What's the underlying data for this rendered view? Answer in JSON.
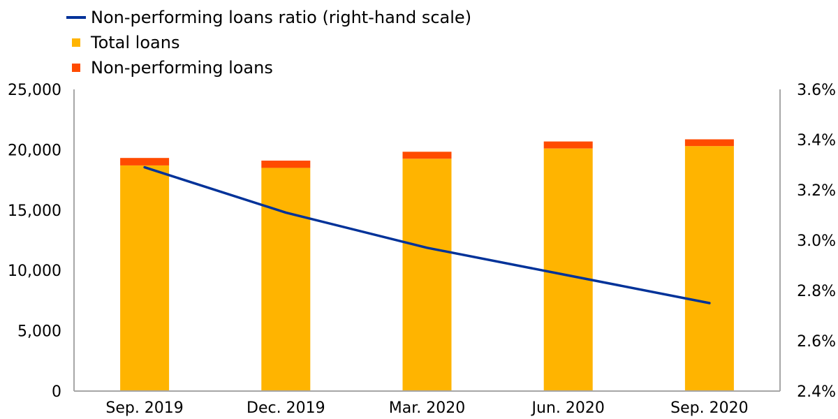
{
  "chart_data": {
    "type": "bar",
    "stacked": true,
    "categories": [
      "Sep. 2019",
      "Dec. 2019",
      "Mar. 2020",
      "Jun. 2020",
      "Sep. 2020"
    ],
    "series": [
      {
        "name": "Total loans",
        "kind": "bar",
        "axis": "left",
        "color": "#FFB400",
        "values": [
          18700,
          18500,
          19250,
          20100,
          20300
        ]
      },
      {
        "name": "Non-performing loans",
        "kind": "bar",
        "axis": "left",
        "color": "#FF4B00",
        "values": [
          620,
          600,
          580,
          580,
          560
        ]
      },
      {
        "name": "Non-performing loans ratio (right-hand scale)",
        "kind": "line",
        "axis": "right",
        "color": "#003299",
        "values": [
          3.29,
          3.11,
          2.97,
          2.86,
          2.75
        ]
      }
    ],
    "y_left": {
      "min": 0,
      "max": 25000,
      "ticks": [
        "0",
        "5,000",
        "10,000",
        "15,000",
        "20,000",
        "25,000"
      ]
    },
    "y_right": {
      "min": 2.4,
      "max": 3.6,
      "ticks": [
        "2.4%",
        "2.6%",
        "2.8%",
        "3.0%",
        "3.2%",
        "3.4%",
        "3.6%"
      ]
    },
    "legend_order": [
      2,
      0,
      1
    ],
    "legend_position": "top-left",
    "grid": false
  }
}
